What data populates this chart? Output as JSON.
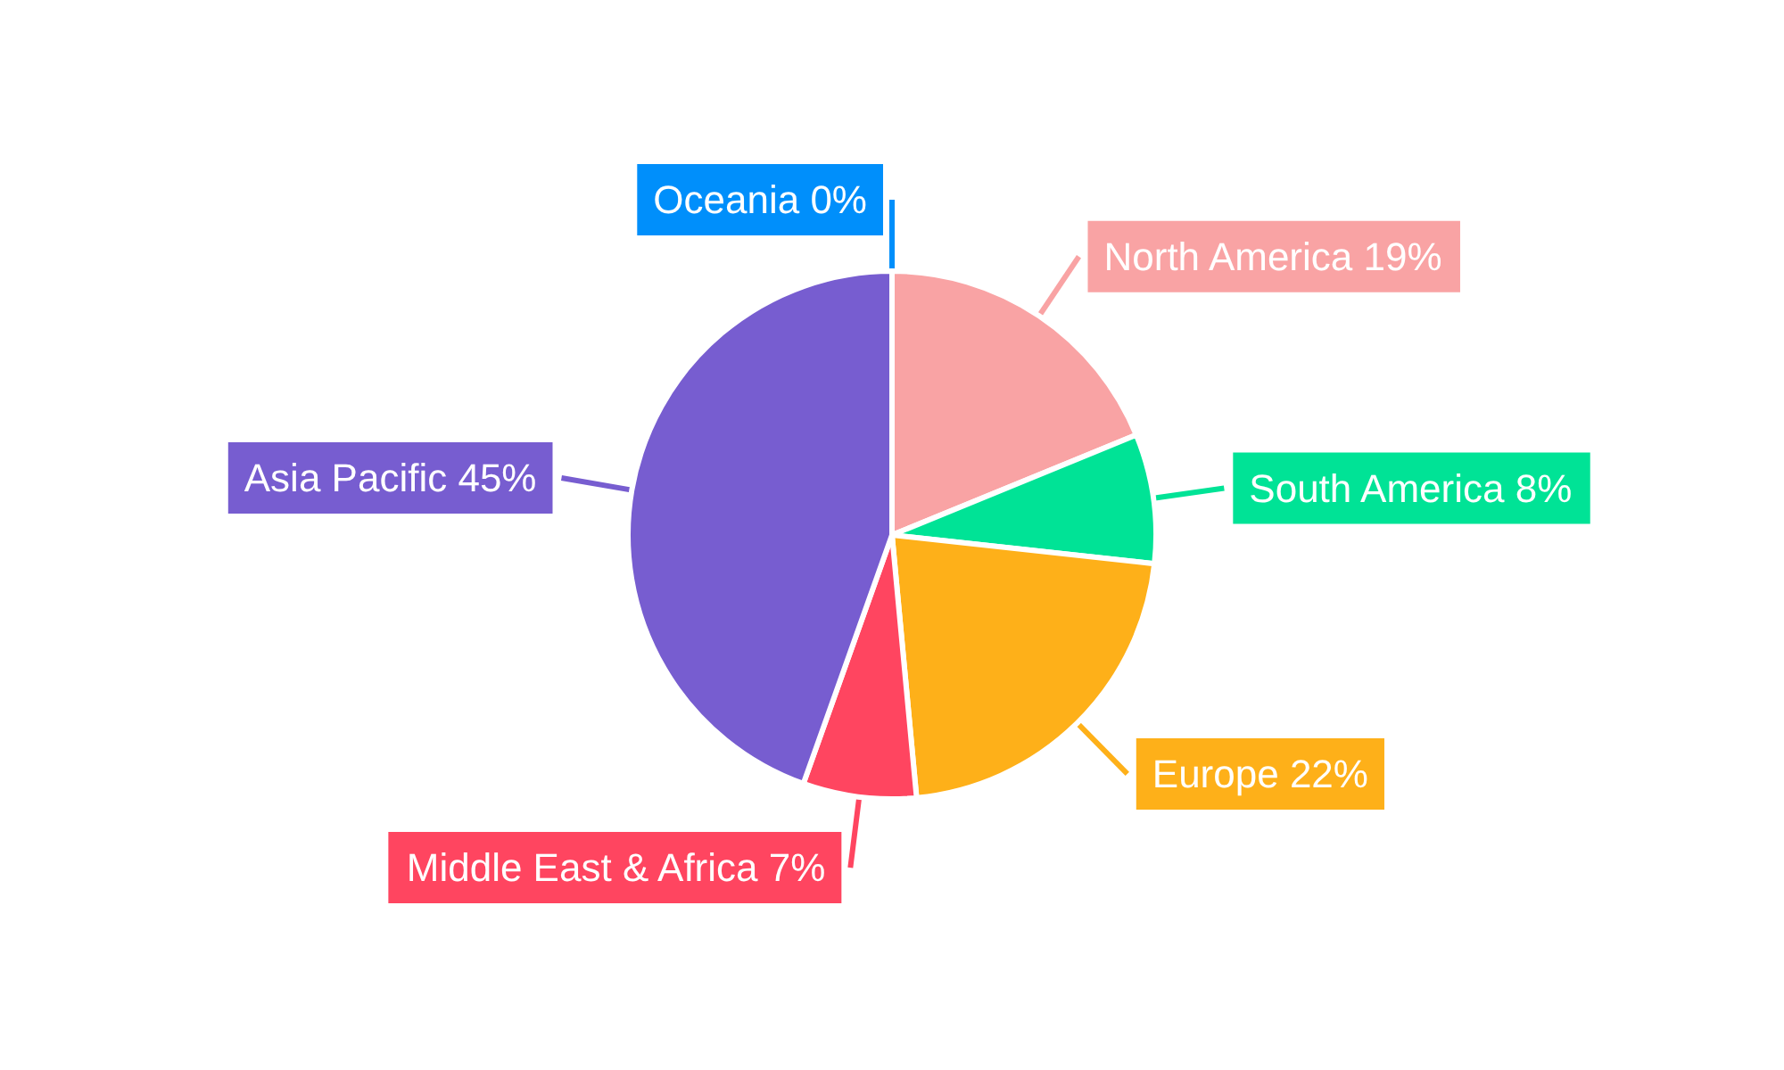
{
  "chart_data": {
    "type": "pie",
    "categories": [
      "North America",
      "South America",
      "Europe",
      "Middle East & Africa",
      "Asia Pacific",
      "Oceania"
    ],
    "values": [
      19,
      8,
      22,
      7,
      45,
      0
    ],
    "value_labels": [
      "19%",
      "8%",
      "22%",
      "7%",
      "45%",
      "0%"
    ],
    "colors": [
      "#f9a3a4",
      "#00e396",
      "#feb019",
      "#ff4560",
      "#775dd0",
      "#008ffb"
    ],
    "legend": false
  }
}
